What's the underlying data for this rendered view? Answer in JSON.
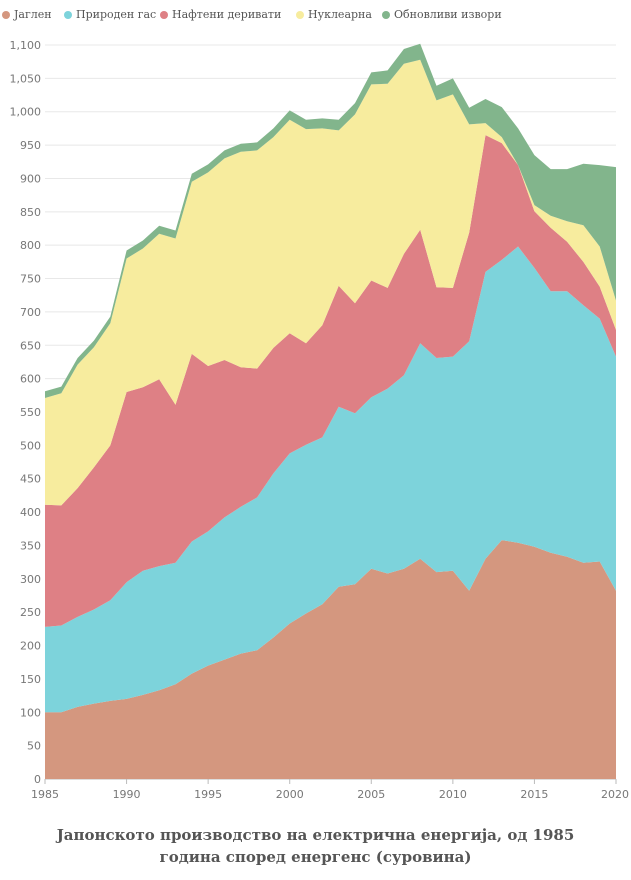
{
  "caption": {
    "line1": "Јапонското производство на електрична енергија, од 1985",
    "line2": "година според енергенс (суровина)"
  },
  "chart_data": {
    "type": "area",
    "stacked": true,
    "title": "Јапонското производство на електрична енергија, од 1985 година според енергенс (суровина)",
    "xlabel": "",
    "ylabel": "",
    "xlim": [
      1985,
      2020
    ],
    "ylim": [
      0,
      1100
    ],
    "x_ticks": [
      1985,
      1990,
      1995,
      2000,
      2005,
      2010,
      2015,
      2020
    ],
    "y_ticks": [
      0,
      50,
      100,
      150,
      200,
      250,
      300,
      350,
      400,
      450,
      500,
      550,
      600,
      650,
      700,
      750,
      800,
      850,
      900,
      950,
      1000,
      1050,
      1100
    ],
    "y_tick_labels": [
      "0",
      "50",
      "100",
      "150",
      "200",
      "250",
      "300",
      "350",
      "400",
      "450",
      "500",
      "550",
      "600",
      "650",
      "700",
      "750",
      "800",
      "850",
      "900",
      "950",
      "1,000",
      "1,050",
      "1,100"
    ],
    "grid": true,
    "legend_position": "top",
    "x": [
      1985,
      1986,
      1987,
      1988,
      1989,
      1990,
      1991,
      1992,
      1993,
      1994,
      1995,
      1996,
      1997,
      1998,
      1999,
      2000,
      2001,
      2002,
      2003,
      2004,
      2005,
      2006,
      2007,
      2008,
      2009,
      2010,
      2011,
      2012,
      2013,
      2014,
      2015,
      2016,
      2017,
      2018,
      2019,
      2020
    ],
    "series": [
      {
        "name": "Јаглен",
        "color": "#d4977f",
        "values": [
          100,
          100,
          108,
          113,
          117,
          120,
          126,
          133,
          142,
          158,
          170,
          179,
          188,
          193,
          212,
          233,
          248,
          262,
          288,
          292,
          315,
          308,
          315,
          330,
          310,
          312,
          282,
          330,
          358,
          354,
          348,
          339,
          333,
          324,
          326,
          282
        ]
      },
      {
        "name": "Природен гас",
        "color": "#7dd3db",
        "values": [
          128,
          130,
          135,
          141,
          151,
          175,
          186,
          186,
          182,
          198,
          201,
          213,
          220,
          229,
          246,
          255,
          253,
          250,
          270,
          256,
          257,
          277,
          290,
          323,
          321,
          321,
          374,
          430,
          420,
          444,
          418,
          392,
          398,
          386,
          364,
          351
        ]
      },
      {
        "name": "Нафтени деривати",
        "color": "#de8085",
        "values": [
          183,
          180,
          193,
          213,
          232,
          285,
          275,
          280,
          237,
          281,
          248,
          236,
          209,
          193,
          188,
          180,
          152,
          168,
          181,
          165,
          175,
          151,
          182,
          170,
          106,
          103,
          163,
          205,
          175,
          122,
          85,
          95,
          74,
          65,
          48,
          40
        ]
      },
      {
        "name": "Нуклеарна",
        "color": "#f7ec9e",
        "values": [
          160,
          168,
          185,
          180,
          183,
          200,
          208,
          218,
          249,
          258,
          290,
          302,
          323,
          327,
          316,
          320,
          321,
          295,
          233,
          283,
          294,
          306,
          285,
          255,
          280,
          290,
          162,
          18,
          9,
          0,
          9,
          18,
          31,
          55,
          60,
          44
        ]
      },
      {
        "name": "Обновливи извори",
        "color": "#82b58c",
        "values": [
          10,
          10,
          10,
          10,
          10,
          12,
          12,
          12,
          12,
          12,
          12,
          12,
          12,
          12,
          13,
          14,
          14,
          15,
          16,
          17,
          18,
          20,
          22,
          24,
          22,
          24,
          25,
          36,
          45,
          55,
          75,
          70,
          78,
          92,
          122,
          200
        ]
      }
    ]
  }
}
